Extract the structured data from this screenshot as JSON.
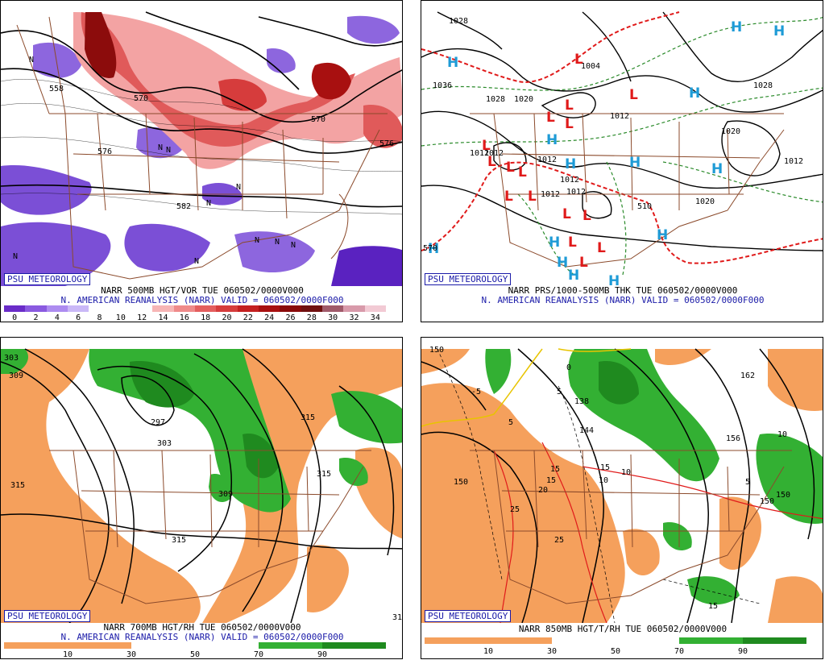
{
  "panels": [
    {
      "id": "tl",
      "brand": "PSU METEOROLOGY",
      "line1": "NARR 500MB HGT/VOR TUE 060502/0000V000",
      "line2": "N. AMERICAN REANALYSIS (NARR) VALID = 060502/0000F000",
      "scale": [
        "0",
        "2",
        "4",
        "6",
        "8",
        "10",
        "12",
        "14",
        "16",
        "18",
        "20",
        "22",
        "24",
        "26",
        "28",
        "30",
        "32",
        "34"
      ],
      "scale_colors": [
        "#6a2cc8",
        "#8a5ae0",
        "#ad8cf0",
        "#cab8f7",
        "#ffffff",
        "#ffffff",
        "#ffffff",
        "#f7b5b5",
        "#ef8a8a",
        "#e45e5e",
        "#d63c3c",
        "#c42020",
        "#a81010",
        "#8a0a0a",
        "#701010",
        "#a05a6a",
        "#d89aaa",
        "#f2cad4"
      ],
      "contour_labels": [
        "558",
        "570",
        "570",
        "576",
        "582",
        "576"
      ],
      "n_marks": [
        "N",
        "N",
        "N",
        "N",
        "N",
        "N",
        "N",
        "N",
        "N",
        "N"
      ]
    },
    {
      "id": "tr",
      "brand": "PSU METEOROLOGY",
      "line1": "NARR PRS/1000-500MB THK TUE 060502/0000V000",
      "line2": "N. AMERICAN REANALYSIS (NARR) VALID = 060502/0000F000",
      "isobar_labels": [
        "1028",
        "1036",
        "1028",
        "1020",
        "1004",
        "1012",
        "1012",
        "1012",
        "1012",
        "1012",
        "1028",
        "1020",
        "1012",
        "1020",
        "1012",
        "1012",
        "510",
        "570"
      ],
      "highs": [
        "H",
        "H",
        "H",
        "H",
        "H",
        "H",
        "H",
        "H",
        "H",
        "H",
        "H",
        "H",
        "H",
        "H"
      ],
      "lows": [
        "L",
        "L",
        "L",
        "L",
        "L",
        "L",
        "L",
        "L",
        "L",
        "L",
        "L",
        "L",
        "L",
        "L",
        "L",
        "L"
      ]
    },
    {
      "id": "bl",
      "brand": "PSU METEOROLOGY",
      "line1": "NARR 700MB HGT/RH TUE 060502/0000V000",
      "line2": "N. AMERICAN REANALYSIS (NARR) VALID = 060502/0000F000",
      "scale": [
        "10",
        "30",
        "50",
        "70",
        "90"
      ],
      "contour_labels": [
        "303",
        "309",
        "297",
        "303",
        "315",
        "315",
        "309",
        "315",
        "315",
        "31"
      ]
    },
    {
      "id": "br",
      "brand": "PSU METEOROLOGY",
      "line1": "NARR 850MB HGT/T/RH TUE 060502/0000V000",
      "scale": [
        "10",
        "30",
        "50",
        "70",
        "90"
      ],
      "contour_labels": [
        "150",
        "-5",
        "5",
        "0",
        "5",
        "138",
        "144",
        "150",
        "15",
        "10",
        "20",
        "15",
        "25",
        "25",
        "15",
        "10",
        "150",
        "162",
        "5",
        "10",
        "156",
        "150",
        "15"
      ]
    }
  ],
  "colors": {
    "purple": "#7b4fd6",
    "purple_dark": "#5a22c0",
    "red_light": "#f3a3a3",
    "red_mid": "#e05a5a",
    "red_dark": "#8c0c0c",
    "border": "#8b4a2b",
    "orange": "#f5a05c",
    "green": "#33b033",
    "green_dark": "#1f8a1f",
    "high": "#1e9bd6",
    "low": "#e01a1a",
    "thickness_red": "#e01a1a",
    "thickness_green": "#2a8a2a"
  }
}
